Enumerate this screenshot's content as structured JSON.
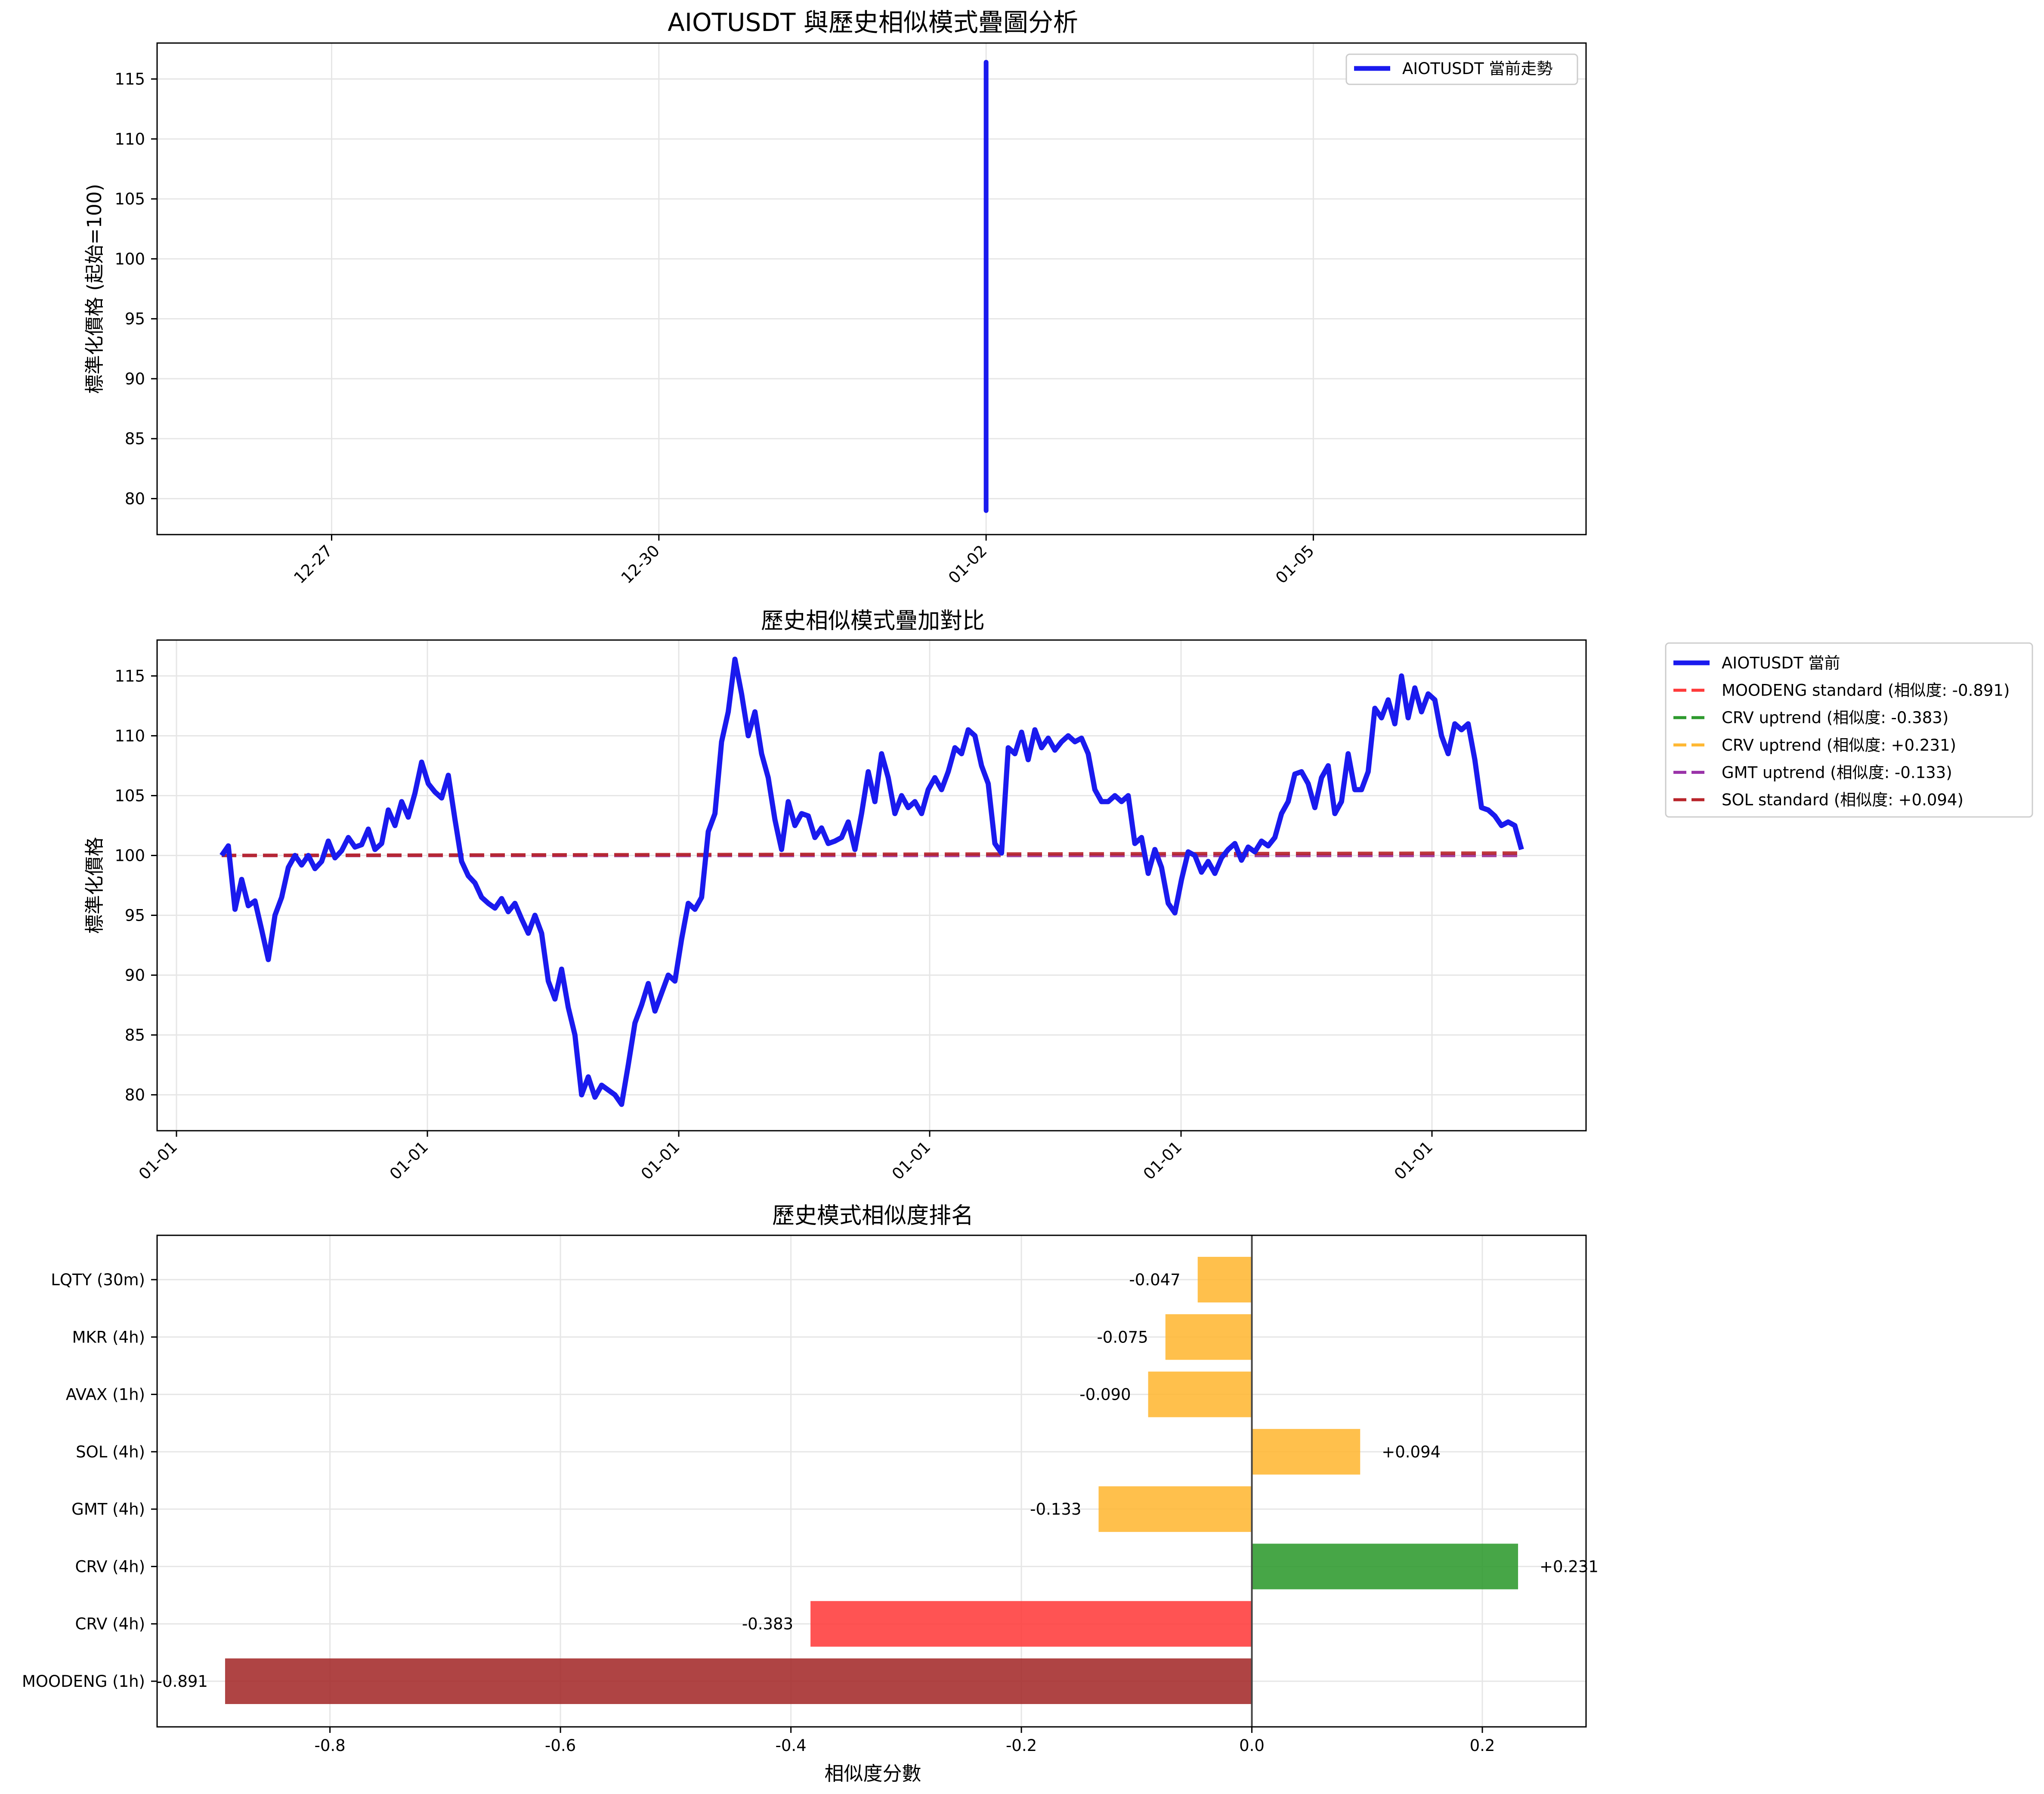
{
  "chart_data": [
    {
      "type": "line",
      "title": "AIOTUSDT 與歷史相似模式疊圖分析",
      "xlabel": "",
      "ylabel": "標準化價格 (起始=100)",
      "x_tick_labels": [
        "12-27",
        "12-30",
        "01-02",
        "01-05"
      ],
      "xlim_days": [
        -1.6,
        11.5
      ],
      "ylim": [
        77,
        118
      ],
      "y_ticks": [
        80,
        85,
        90,
        95,
        100,
        105,
        110,
        115
      ],
      "grid": true,
      "legend_position": "upper right",
      "series": [
        {
          "name": "AIOTUSDT 當前走勢",
          "color": "#1a1aee",
          "x_day": 6.0,
          "y_min": 79.0,
          "y_max": 116.4
        }
      ]
    },
    {
      "type": "line",
      "title": "歷史相似模式疊加對比",
      "xlabel": "",
      "ylabel": "標準化價格",
      "x_tick_labels": [
        "01-01",
        "01-01",
        "01-01",
        "01-01",
        "01-01",
        "01-01"
      ],
      "ylim": [
        77,
        118
      ],
      "y_ticks": [
        80,
        85,
        90,
        95,
        100,
        105,
        110,
        115
      ],
      "grid": true,
      "legend_position": "outside right",
      "series": [
        {
          "name": "AIOTUSDT 當前",
          "color": "#1a1aee",
          "values": [
            100.0,
            100.8,
            95.5,
            98.0,
            95.8,
            96.2,
            93.8,
            91.3,
            95.0,
            96.5,
            99.0,
            100.0,
            99.2,
            100.0,
            98.9,
            99.5,
            101.2,
            99.8,
            100.4,
            101.5,
            100.7,
            100.9,
            102.2,
            100.5,
            101.0,
            103.8,
            102.5,
            104.5,
            103.2,
            105.2,
            107.8,
            106.0,
            105.3,
            104.8,
            106.7,
            103.0,
            99.5,
            98.3,
            97.7,
            96.5,
            96.0,
            95.6,
            96.4,
            95.3,
            96.0,
            94.7,
            93.5,
            95.0,
            93.5,
            89.5,
            88.0,
            90.5,
            87.3,
            85.0,
            80.0,
            81.5,
            79.8,
            80.8,
            80.4,
            80.0,
            79.2,
            82.5,
            86.0,
            87.5,
            89.3,
            87.0,
            88.5,
            90.0,
            89.5,
            93.0,
            96.0,
            95.5,
            96.5,
            102.0,
            103.5,
            109.5,
            112.0,
            116.4,
            113.5,
            110.0,
            112.0,
            108.5,
            106.5,
            103.0,
            100.5,
            104.5,
            102.5,
            103.5,
            103.3,
            101.5,
            102.3,
            101.0,
            101.2,
            101.5,
            102.8,
            100.5,
            103.5,
            107.0,
            104.5,
            108.5,
            106.5,
            103.5,
            105.0,
            104.0,
            104.5,
            103.5,
            105.5,
            106.5,
            105.5,
            107.0,
            109.0,
            108.5,
            110.5,
            110.0,
            107.5,
            106.0,
            101.0,
            100.2,
            109.0,
            108.5,
            110.3,
            108.0,
            110.5,
            109.0,
            109.8,
            108.8,
            109.5,
            110.0,
            109.5,
            109.8,
            108.5,
            105.5,
            104.5,
            104.5,
            105.0,
            104.5,
            105.0,
            101.0,
            101.5,
            98.5,
            100.5,
            99.0,
            96.0,
            95.2,
            98.0,
            100.3,
            100.0,
            98.6,
            99.5,
            98.5,
            99.8,
            100.5,
            101.0,
            99.6,
            100.7,
            100.3,
            101.2,
            100.8,
            101.5,
            103.5,
            104.5,
            106.8,
            107.0,
            106.0,
            104.0,
            106.5,
            107.5,
            103.5,
            104.5,
            108.5,
            105.5,
            105.5,
            107.0,
            112.3,
            111.5,
            113.0,
            111.0,
            115.0,
            111.5,
            114.0,
            112.0,
            113.5,
            113.0,
            110.0,
            108.5,
            111.0,
            110.5,
            111.0,
            108.0,
            104.0,
            103.8,
            103.3,
            102.5,
            102.8,
            102.5,
            100.5
          ],
          "note_x": "values evenly spaced in time across plot"
        },
        {
          "name": "MOODENG standard (相似度: -0.891)",
          "color": "#ff3b3b",
          "start": 100.0,
          "end": 100.0
        },
        {
          "name": "CRV uptrend (相似度: -0.383)",
          "color": "#2e9a2e",
          "start": 100.0,
          "end": 100.0
        },
        {
          "name": "CRV uptrend (相似度: +0.231)",
          "color": "#ffb833",
          "start": 100.0,
          "end": 100.0
        },
        {
          "name": "GMT uptrend (相似度: -0.133)",
          "color": "#9a33a8",
          "start": 100.0,
          "end": 100.0
        },
        {
          "name": "SOL standard (相似度: +0.094)",
          "color": "#b8242a",
          "start": 100.0,
          "end": 100.2
        }
      ]
    },
    {
      "type": "bar",
      "orientation": "horizontal",
      "title": "歷史模式相似度排名",
      "xlabel": "相似度分數",
      "ylabel": "",
      "xlim": [
        -0.95,
        0.29
      ],
      "x_ticks": [
        -0.8,
        -0.6,
        -0.4,
        -0.2,
        0.0,
        0.2
      ],
      "x_tick_labels": [
        "-0.8",
        "-0.6",
        "-0.4",
        "-0.2",
        "0.0",
        "0.2"
      ],
      "grid": true,
      "categories": [
        "LQTY (30m)",
        "MKR (4h)",
        "AVAX (1h)",
        "SOL (4h)",
        "GMT (4h)",
        "CRV (4h)",
        "CRV (4h)",
        "MOODENG (1h)"
      ],
      "values": [
        -0.047,
        -0.075,
        -0.09,
        0.094,
        -0.133,
        0.231,
        -0.383,
        -0.891
      ],
      "value_labels": [
        "-0.047",
        "-0.075",
        "-0.090",
        "+0.094",
        "-0.133",
        "+0.231",
        "-0.383",
        "-0.891"
      ],
      "colors": [
        "#ffb733",
        "#ffb733",
        "#ffb733",
        "#ffb733",
        "#ffb733",
        "#2e9a2e",
        "#ff3b3b",
        "#a42a2a"
      ]
    }
  ]
}
